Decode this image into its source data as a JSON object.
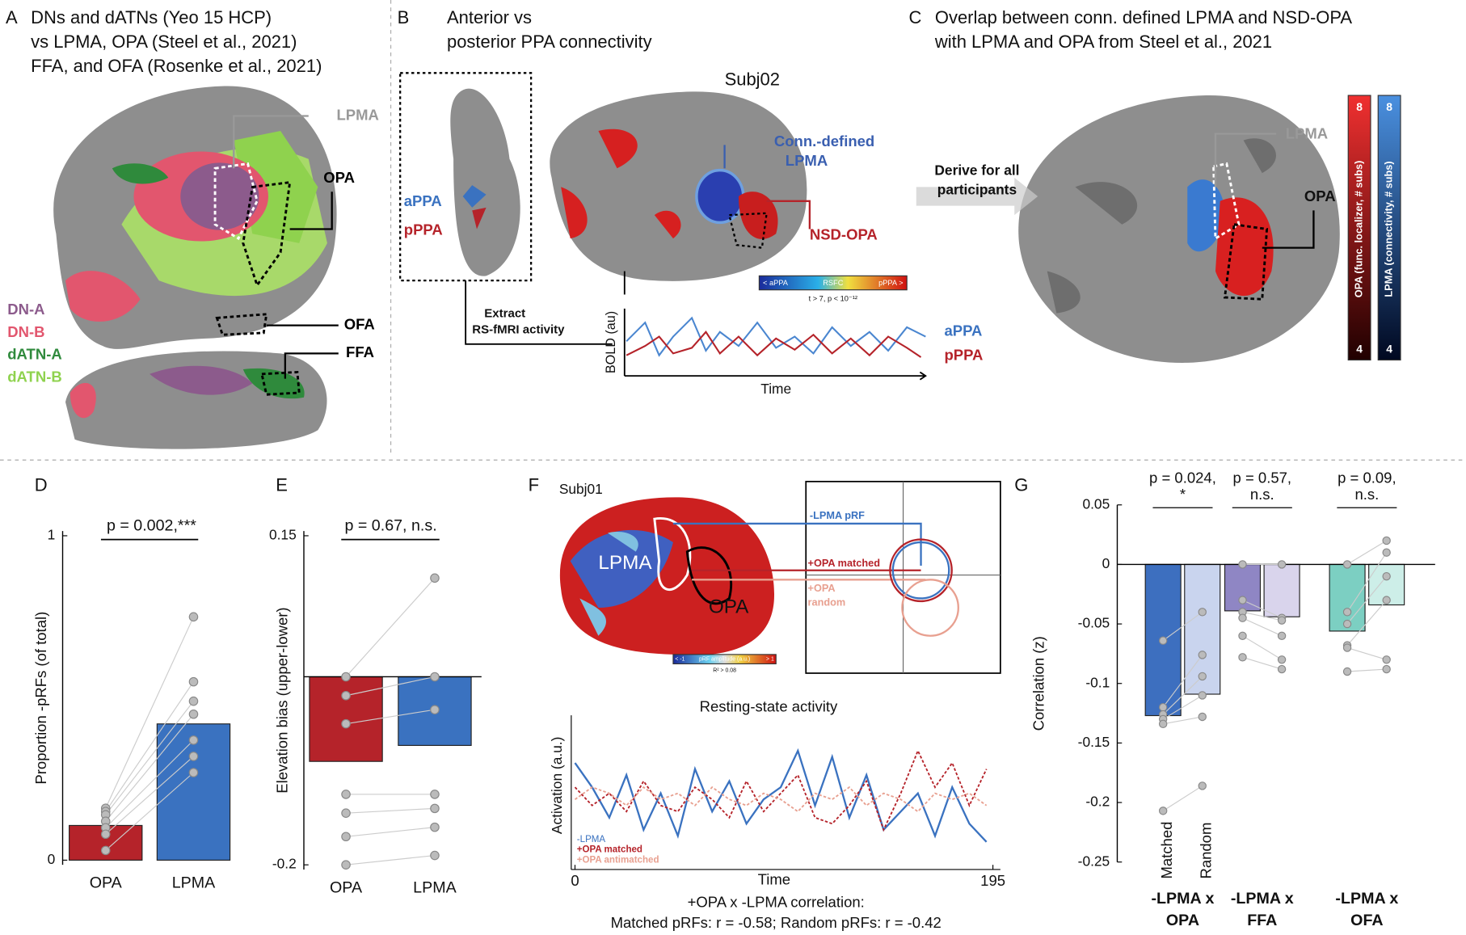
{
  "panels": {
    "A": {
      "label": "A",
      "title": [
        "DNs and dATNs (Yeo 15 HCP)",
        "vs LPMA, OPA (Steel et al., 2021)",
        "FFA, and OFA (Rosenke et al., 2021)"
      ],
      "regions": [
        "LPMA",
        "OPA",
        "OFA",
        "FFA"
      ],
      "networks": [
        {
          "name": "DN-A",
          "color": "#8c5b8c"
        },
        {
          "name": "DN-B",
          "color": "#e2566e"
        },
        {
          "name": "dATN-A",
          "color": "#2f8a3c"
        },
        {
          "name": "dATN-B",
          "color": "#8fd24e"
        }
      ]
    },
    "B": {
      "label": "B",
      "title": [
        "Anterior vs",
        "posterior PPA connectivity"
      ],
      "subject": "Subj02",
      "seeds": [
        "aPPA",
        "pPPA"
      ],
      "lpma": [
        "Conn.-defined",
        "LPMA"
      ],
      "opa": "NSD-OPA",
      "colorbar": [
        "< aPPA",
        "RSFC",
        "pPPA >"
      ],
      "threshold": "t > 7, p < 10⁻¹²",
      "extract": [
        "Extract",
        "RS-fMRI activity"
      ],
      "ylabel": "BOLD (au)",
      "xlabel": "Time",
      "traces": [
        "aPPA",
        "pPPA"
      ]
    },
    "C": {
      "label": "C",
      "title": [
        "Overlap between conn. defined LPMA and NSD-OPA",
        "with LPMA and OPA from Steel et al., 2021"
      ],
      "regions": [
        "LPMA",
        "OPA"
      ],
      "derive": [
        "Derive for all",
        "participants"
      ],
      "colorbars": [
        {
          "label": "OPA (func. localizer, # subs)",
          "max": 8,
          "min": 4
        },
        {
          "label": "LPMA (connectivity, # subs)",
          "max": 8,
          "min": 4
        }
      ]
    },
    "F": {
      "label": "F",
      "subject": "Subj01",
      "regions": [
        "LPMA",
        "OPA"
      ],
      "prf": [
        "-LPMA pRF",
        "+OPA matched",
        "+OPA",
        "random"
      ],
      "colorbar": [
        "< -1",
        "pRF amplitude (a.u.)",
        "> 1"
      ],
      "threshold": "R² > 0.08"
    }
  },
  "chart_data": [
    {
      "label": "D",
      "type": "bar",
      "title": "p = 0.002,***",
      "ylabel": "Proportion -pRFs (of total)",
      "categories": [
        "OPA",
        "LPMA"
      ],
      "values": [
        0.107,
        0.42
      ],
      "colors": [
        "#b5232a",
        "#3a72c0"
      ],
      "points": [
        [
          0.16,
          0.15,
          0.14,
          0.12,
          0.1,
          0.08,
          0.03
        ],
        [
          0.75,
          0.55,
          0.49,
          0.45,
          0.37,
          0.32,
          0.27
        ]
      ],
      "ylim": [
        0,
        1
      ],
      "yticks": [
        0,
        1
      ]
    },
    {
      "label": "E",
      "type": "bar",
      "title": "p = 0.67, n.s.",
      "ylabel": "Elevation bias (upper-lower)",
      "categories": [
        "OPA",
        "LPMA"
      ],
      "values": [
        -0.09,
        -0.073
      ],
      "colors": [
        "#b5232a",
        "#3a72c0"
      ],
      "points": [
        [
          0,
          -0.02,
          -0.05,
          -0.125,
          -0.145,
          -0.17,
          -0.2
        ],
        [
          0.105,
          0,
          -0.035,
          -0.125,
          -0.14,
          -0.16,
          -0.19
        ]
      ],
      "ylim": [
        -0.2,
        0.15
      ],
      "yticks": [
        -0.2,
        0.15
      ]
    },
    {
      "type": "line",
      "title": "Resting-state activity",
      "xlabel": "Time",
      "ylabel": "Activation (a.u.)",
      "xlim": [
        0,
        195
      ],
      "xticks": [
        0,
        195
      ],
      "ylim": [
        -1,
        1
      ],
      "x": [
        0,
        8,
        16,
        24,
        32,
        40,
        48,
        56,
        64,
        72,
        80,
        88,
        96,
        104,
        112,
        120,
        128,
        136,
        144,
        152,
        160,
        168,
        176,
        184,
        192
      ],
      "series": [
        {
          "name": "-LPMA",
          "color": "#3a72c0",
          "values": [
            0.6,
            0.2,
            -0.3,
            0.4,
            -0.5,
            0.1,
            -0.6,
            0.5,
            -0.2,
            0.3,
            -0.4,
            0,
            0.2,
            0.8,
            -0.1,
            0.7,
            -0.3,
            0.4,
            -0.5,
            -0.2,
            0.1,
            -0.6,
            0.2,
            -0.4,
            -0.7
          ]
        },
        {
          "name": "+OPA matched",
          "color": "#b5232a",
          "values": [
            0.2,
            -0.1,
            0.1,
            -0.2,
            0.3,
            -0.1,
            -0.2,
            0.2,
            0,
            -0.3,
            0.3,
            -0.2,
            0.1,
            0.4,
            -0.3,
            -0.4,
            -0.1,
            0.3,
            -0.5,
            0.1,
            0.8,
            0.2,
            0.6,
            -0.1,
            0.5
          ]
        },
        {
          "name": "+OPA antimatched",
          "color": "#e8a090",
          "values": [
            0,
            0.2,
            0.1,
            -0.1,
            0.2,
            0,
            0.1,
            -0.1,
            0.2,
            0,
            -0.1,
            0.1,
            0,
            -0.2,
            0.1,
            0,
            0.2,
            -0.1,
            0.1,
            0,
            -0.2,
            0.1,
            0,
            0.1,
            -0.1
          ]
        }
      ],
      "caption": [
        "+OPA x -LPMA correlation:",
        "Matched pRFs: r = -0.58; Random pRFs: r = -0.42"
      ]
    },
    {
      "label": "G",
      "type": "grouped_bar",
      "ylabel": "Correlation (z)",
      "categories": [
        [
          "-LPMA x",
          "OPA"
        ],
        [
          "-LPMA x",
          "FFA"
        ],
        [
          "-LPMA x",
          "OFA"
        ]
      ],
      "p_labels": [
        [
          "p = 0.024,",
          "*"
        ],
        [
          "p = 0.57,",
          "n.s."
        ],
        [
          "p = 0.09,",
          "n.s."
        ]
      ],
      "series": [
        {
          "name": "Matched",
          "values": [
            -0.127,
            -0.039,
            -0.056
          ],
          "colors": [
            "#3d6fbf",
            "#8f86c4",
            "#7ccfc2"
          ],
          "points": [
            [
              -0.064,
              -0.12,
              -0.126,
              -0.13,
              -0.134,
              -0.207
            ],
            [
              0,
              -0.03,
              -0.04,
              -0.045,
              -0.06,
              -0.078
            ],
            [
              0,
              -0.04,
              -0.05,
              -0.068,
              -0.07,
              -0.09
            ]
          ]
        },
        {
          "name": "Random",
          "values": [
            -0.109,
            -0.044,
            -0.034
          ],
          "colors": [
            "#c9d4ee",
            "#d9d4ec",
            "#cdeee8"
          ],
          "points": [
            [
              -0.04,
              -0.076,
              -0.094,
              -0.11,
              -0.128,
              -0.186
            ],
            [
              0,
              -0.045,
              -0.047,
              -0.06,
              -0.08,
              -0.088
            ],
            [
              0.02,
              0.01,
              -0.01,
              -0.03,
              -0.08,
              -0.088
            ]
          ]
        }
      ],
      "ylim": [
        -0.25,
        0.05
      ],
      "yticks": [
        0.05,
        0,
        -0.05,
        -0.1,
        -0.15,
        -0.2,
        -0.25
      ]
    }
  ]
}
